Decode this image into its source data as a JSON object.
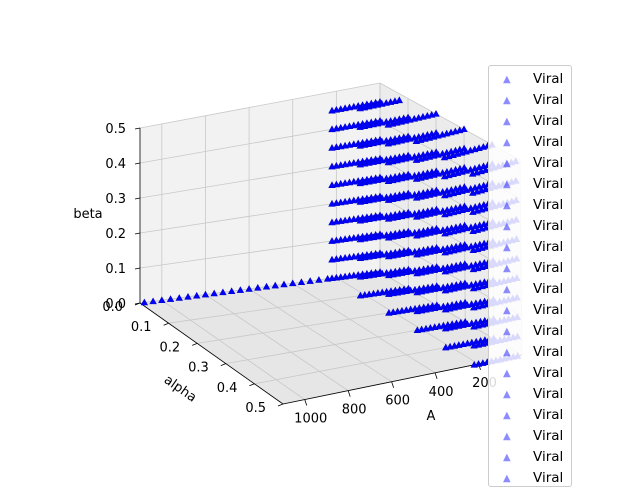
{
  "chart_data": {
    "type": "scatter3d",
    "title": "",
    "x_axis": {
      "label": "A",
      "range": [
        0,
        1100
      ],
      "ticks": [
        "200",
        "400",
        "600",
        "800",
        "1000"
      ]
    },
    "y_axis": {
      "label": "alpha",
      "range": [
        0,
        0.5
      ],
      "ticks": [
        "0.0",
        "0.1",
        "0.2",
        "0.3",
        "0.4",
        "0.5"
      ]
    },
    "z_axis": {
      "label": "beta",
      "range": [
        0,
        0.5
      ],
      "ticks": [
        "0.0",
        "0.1",
        "0.2",
        "0.3",
        "0.4",
        "0.5"
      ]
    },
    "grid": true,
    "legend": {
      "placement": "right",
      "entries": [
        "Viral",
        "Viral",
        "Viral",
        "Viral",
        "Viral",
        "Viral",
        "Viral",
        "Viral",
        "Viral",
        "Viral",
        "Viral",
        "Viral",
        "Viral",
        "Viral",
        "Viral",
        "Viral",
        "Viral",
        "Viral",
        "Viral",
        "Viral"
      ]
    },
    "marker_color": "#0000ff",
    "marker": "triangle",
    "series": [
      {
        "name": "Viral",
        "points_description": "A grid of points for A in [0,220], alpha in [0,0.1], beta in [0,0.5] plus a line at beta=0, alpha=0 along A",
        "grid_A": [
          0,
          20,
          40,
          60,
          80,
          100,
          120,
          140,
          160,
          180,
          200,
          220
        ],
        "grid_alpha": [
          0.0,
          0.02,
          0.04,
          0.06,
          0.08,
          0.1
        ],
        "grid_beta": [
          0.0,
          0.05,
          0.1,
          0.15,
          0.2,
          0.25,
          0.3,
          0.35,
          0.4,
          0.45,
          0.5
        ],
        "line_A": [
          240,
          280,
          320,
          360,
          400,
          440,
          480,
          520,
          560,
          600,
          640,
          680,
          720,
          760,
          800,
          840,
          880,
          920,
          960,
          1000,
          1040,
          1080
        ],
        "line_alpha": 0.0,
        "line_beta": 0.0
      }
    ]
  }
}
